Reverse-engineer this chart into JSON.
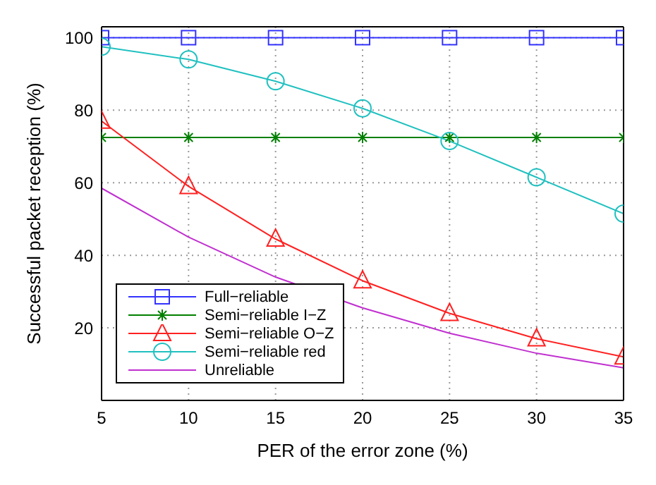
{
  "chart_data": {
    "type": "line",
    "xlabel": "PER of the error zone (%)",
    "ylabel": "Successful packet reception (%)",
    "x": [
      5,
      10,
      15,
      20,
      25,
      30,
      35
    ],
    "xlim": [
      5,
      35
    ],
    "xticks": [
      5,
      10,
      15,
      20,
      25,
      30,
      35
    ],
    "ylim": [
      0,
      103
    ],
    "yticks": [
      20,
      40,
      60,
      80,
      100
    ],
    "grid": true,
    "legend": "bottom left",
    "line_style": "solid",
    "series": [
      {
        "name": "Full−reliable",
        "color": "#3333ff",
        "marker": "square",
        "values": [
          100,
          100,
          100,
          100,
          100,
          100,
          100
        ]
      },
      {
        "name": "Semi−reliable I−Z",
        "color": "#008000",
        "marker": "cross",
        "values": [
          72.5,
          72.5,
          72.5,
          72.5,
          72.5,
          72.5,
          72.5
        ]
      },
      {
        "name": "Semi−reliable O−Z",
        "color": "#ff2020",
        "marker": "triangle",
        "values": [
          77,
          59,
          44.5,
          33,
          24,
          17,
          12
        ]
      },
      {
        "name": "Semi−reliable red",
        "color": "#20c0c0",
        "marker": "circle",
        "values": [
          97.5,
          94,
          88,
          80.5,
          71.5,
          61.5,
          51.5
        ]
      },
      {
        "name": "Unreliable",
        "color": "#c030d0",
        "marker": "none",
        "values": [
          58.5,
          45,
          34,
          25.5,
          18.5,
          13,
          9
        ]
      }
    ]
  }
}
